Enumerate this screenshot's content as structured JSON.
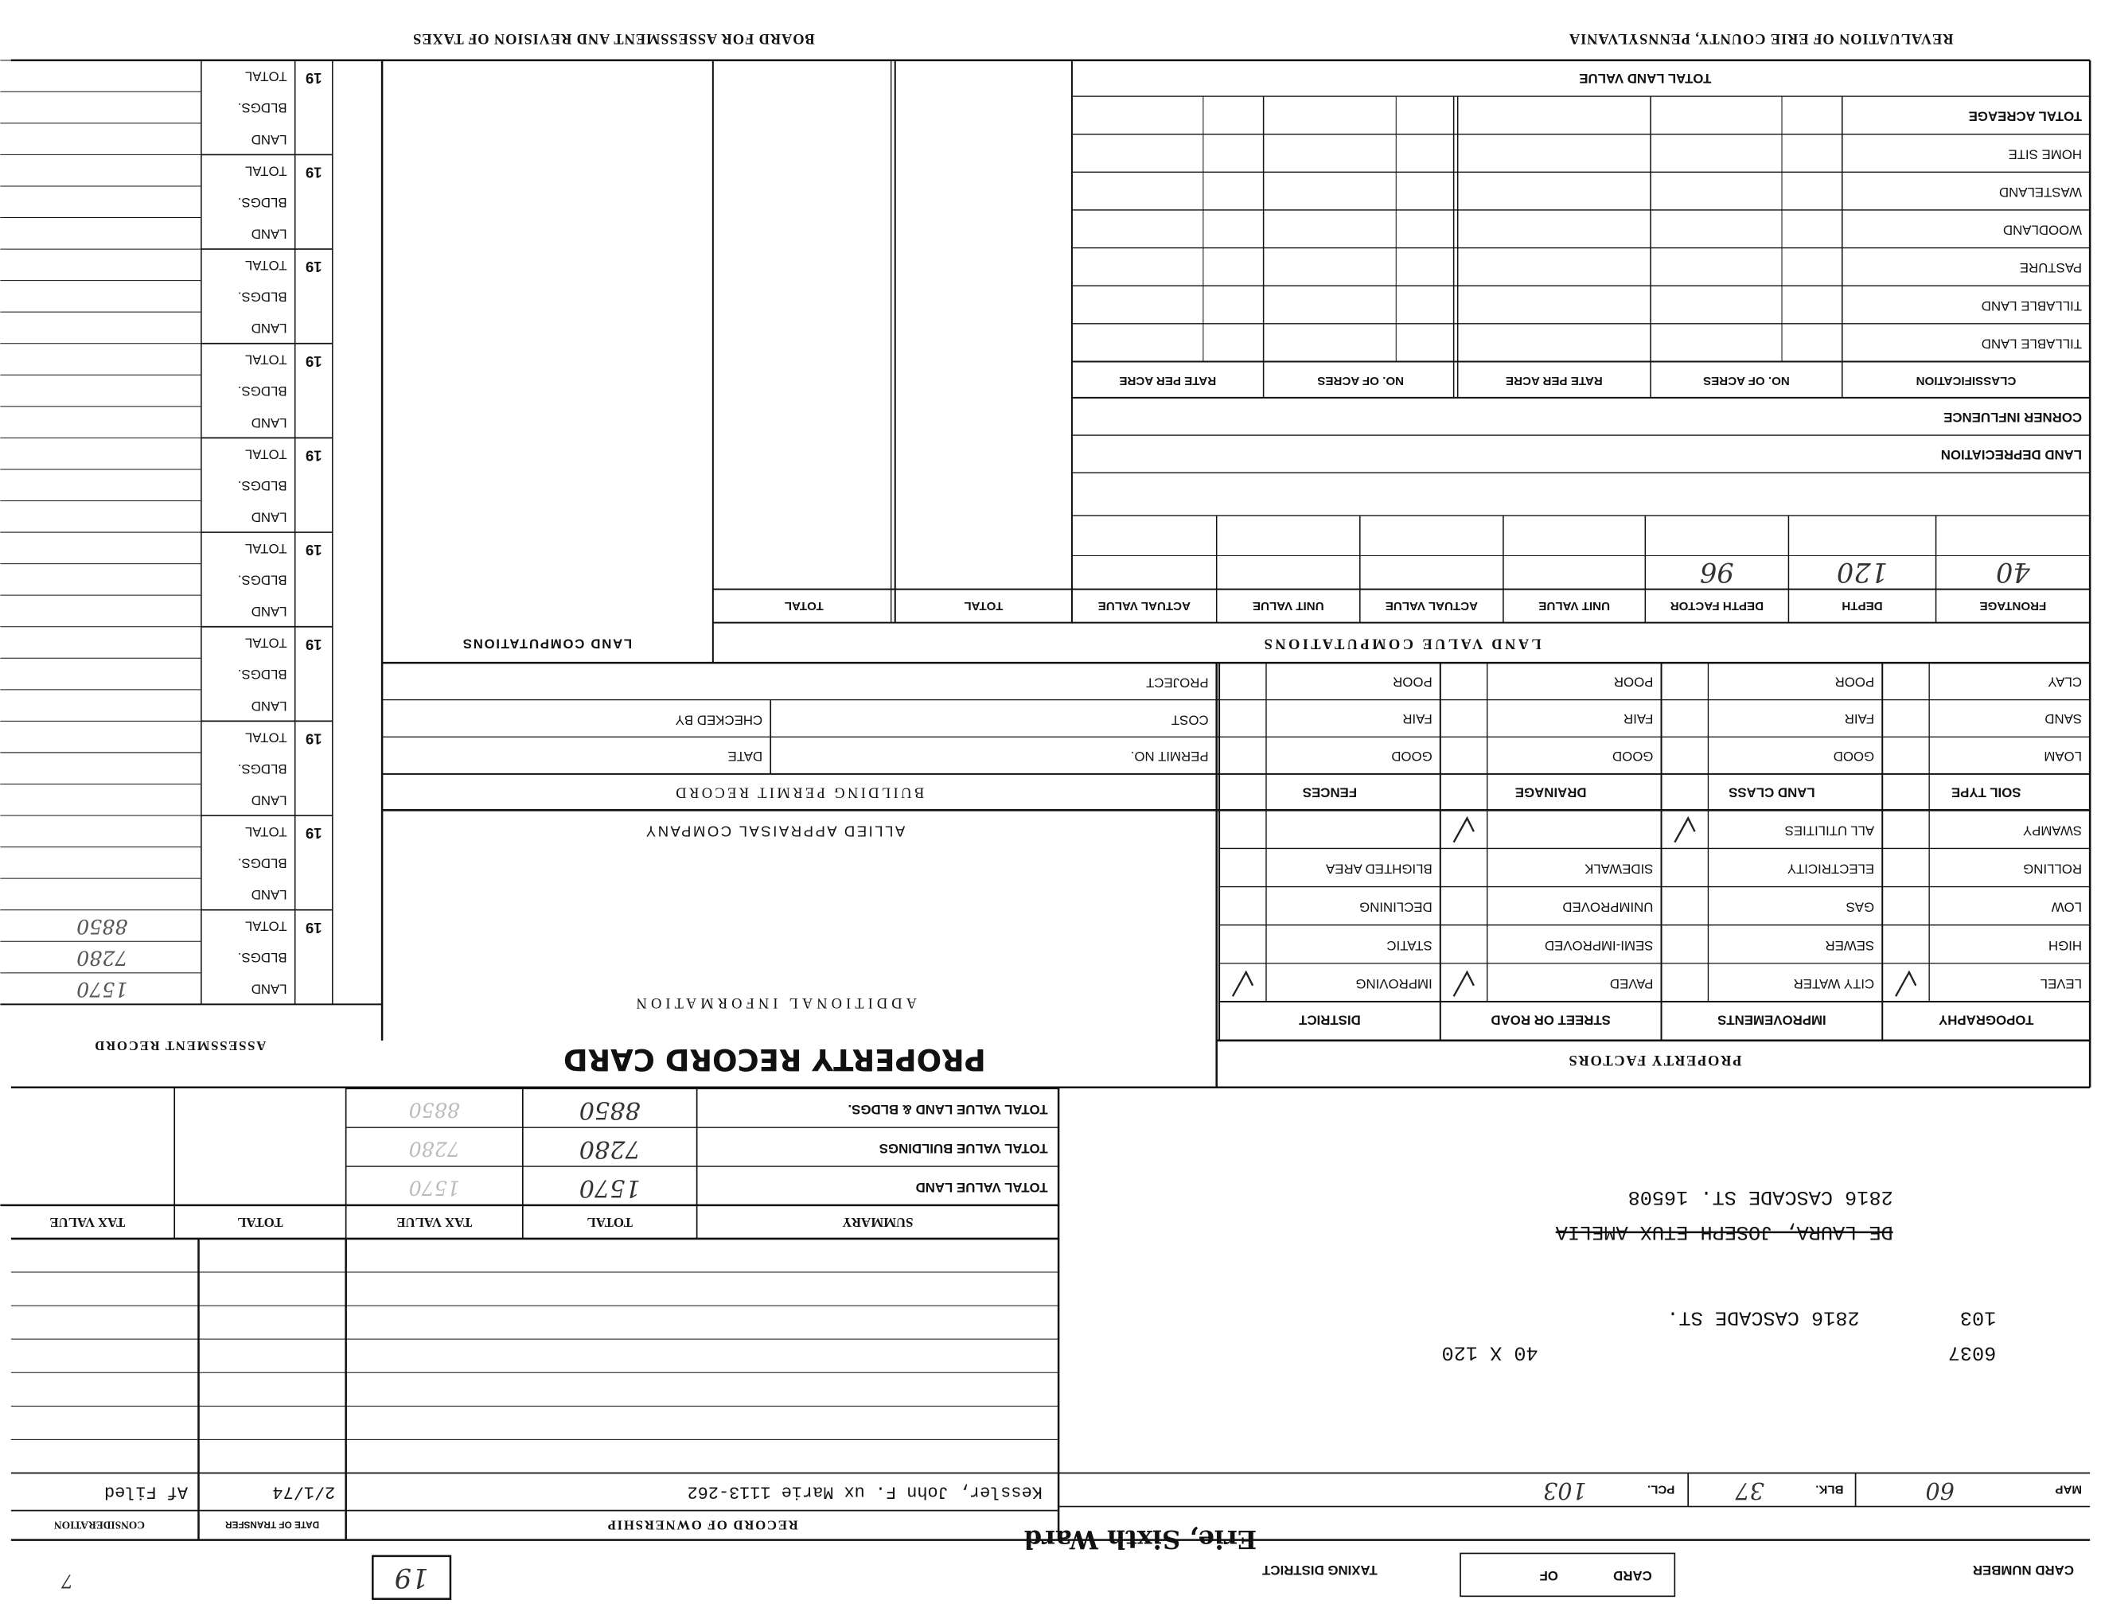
{
  "header": {
    "left": "REVALUATION OF ERIE COUNTY, PENNSYLVANIA",
    "right": "BOARD FOR ASSESSMENT AND REVISION OF TAXES"
  },
  "card": {
    "card_number_label": "CARD NUMBER",
    "card_of": [
      "CARD",
      "OF"
    ],
    "taxing_district_label": "TAXING DISTRICT",
    "taxing_district": "Erie, Sixth Ward",
    "number": "19",
    "corner": "7"
  },
  "parcel": {
    "map_label": "MAP",
    "map": "60",
    "blk_label": "BLK.",
    "blk": "37",
    "pcl_label": "PCL.",
    "pcl": "103"
  },
  "address": {
    "number": "6037",
    "lot": "103",
    "street": "2816 CASCADE ST.",
    "size": "40 X 120",
    "prior_owner": "DE LAURA, JOSEPH ETUX AMELIA",
    "owner_address": "2816 CASCADE ST. 16508"
  },
  "ownership": {
    "title": "RECORD OF OWNERSHIP",
    "date_header": "DATE OF TRANSFER",
    "consideration_header": "CONSIDERATION",
    "rows": [
      [
        "Kessler, John F. ux Marie   1113-262",
        "2/1/74",
        "Af Filed"
      ]
    ]
  },
  "summary": {
    "headers": [
      "SUMMARY",
      "TOTAL",
      "TAX VALUE",
      "TOTAL",
      "TAX VALUE"
    ],
    "rows": [
      [
        "TOTAL VALUE LAND",
        "1570"
      ],
      [
        "TOTAL VALUE BUILDINGS",
        "7280"
      ],
      [
        "TOTAL VALUE LAND & BLDGS.",
        "8850"
      ]
    ]
  },
  "title": "PROPERTY RECORD CARD",
  "property_factors": {
    "title": "PROPERTY FACTORS",
    "groups": [
      {
        "header": "TOPOGRAPHY",
        "items": [
          "LEVEL",
          "HIGH",
          "LOW",
          "ROLLING",
          "SWAMPY"
        ]
      },
      {
        "header": "IMPROVEMENTS",
        "items": [
          "CITY WATER",
          "SEWER",
          "GAS",
          "ELECTRICITY",
          "ALL UTILITIES"
        ]
      },
      {
        "header": "STREET OR ROAD",
        "items": [
          "PAVED",
          "SEMI-IMPROVED",
          "UNIMPROVED",
          "SIDEWALK"
        ]
      },
      {
        "header": "DISTRICT",
        "items": [
          "IMPROVING",
          "STATIC",
          "DECLINING",
          "BLIGHTED AREA"
        ]
      }
    ]
  },
  "soil": {
    "headers": [
      "SOIL TYPE",
      "LAND CLASS",
      "DRAINAGE",
      "FENCES"
    ],
    "rows": [
      [
        "LOAM",
        "GOOD",
        "GOOD",
        "GOOD"
      ],
      [
        "SAND",
        "FAIR",
        "FAIR",
        "FAIR"
      ],
      [
        "CLAY",
        "POOR",
        "POOR",
        "POOR"
      ]
    ]
  },
  "additional": {
    "title": "ADDITIONAL INFORMATION",
    "company": "ALLIED APPRAISAL COMPANY"
  },
  "permits": {
    "title": "BUILDING PERMIT RECORD",
    "permit_no": "PERMIT NO.",
    "date": "DATE",
    "cost": "COST",
    "checked_by": "CHECKED BY",
    "project": "PROJECT"
  },
  "land_value": {
    "title": "LAND VALUE COMPUTATIONS",
    "headers": [
      "FRONTAGE",
      "DEPTH",
      "DEPTH FACTOR",
      "UNIT VALUE",
      "ACTUAL VALUE",
      "UNIT VALUE",
      "ACTUAL VALUE",
      "TOTAL",
      "TOTAL"
    ],
    "row": [
      "40",
      "120",
      "96"
    ],
    "land_depreciation": "LAND DEPRECIATION",
    "corner_influence": "CORNER INFLUENCE",
    "classification_headers": [
      "CLASSIFICATION",
      "NO. OF ACRES",
      "RATE PER ACRE",
      "NO. OF ACRES",
      "RATE PER ACRE"
    ],
    "classes": [
      "TILLABLE LAND",
      "TILLABLE LAND",
      "PASTURE",
      "WOODLAND",
      "WASTELAND",
      "HOME SITE",
      "TOTAL ACREAGE"
    ],
    "total_land_value": "TOTAL LAND VALUE"
  },
  "land_computations": "LAND COMPUTATIONS",
  "assessment": {
    "title": "ASSESSMENT RECORD",
    "year_prefix": "19",
    "row_labels": [
      "LAND",
      "BLDGS.",
      "TOTAL"
    ],
    "values": [
      "1570",
      "7280",
      "8850"
    ]
  }
}
